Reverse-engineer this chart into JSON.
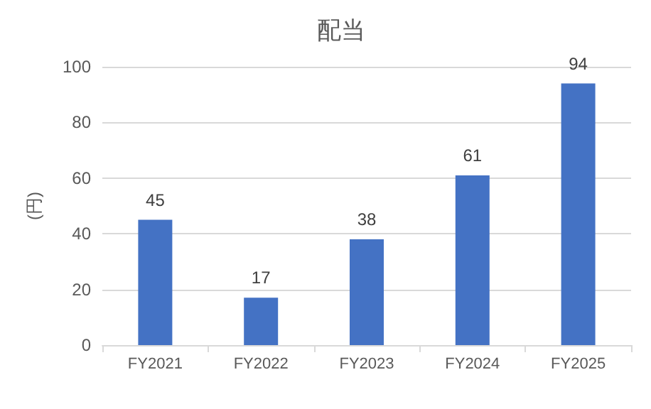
{
  "chart_data": {
    "type": "bar",
    "title": "配当",
    "ylabel": "(円)",
    "categories": [
      "FY2021",
      "FY2022",
      "FY2023",
      "FY2024",
      "FY2025"
    ],
    "values": [
      45,
      17,
      38,
      61,
      94
    ],
    "color": "#4472c4",
    "ylim": [
      0,
      100
    ],
    "yticks": [
      0,
      20,
      40,
      60,
      80,
      100
    ],
    "grid": "y",
    "data_labels": true
  }
}
